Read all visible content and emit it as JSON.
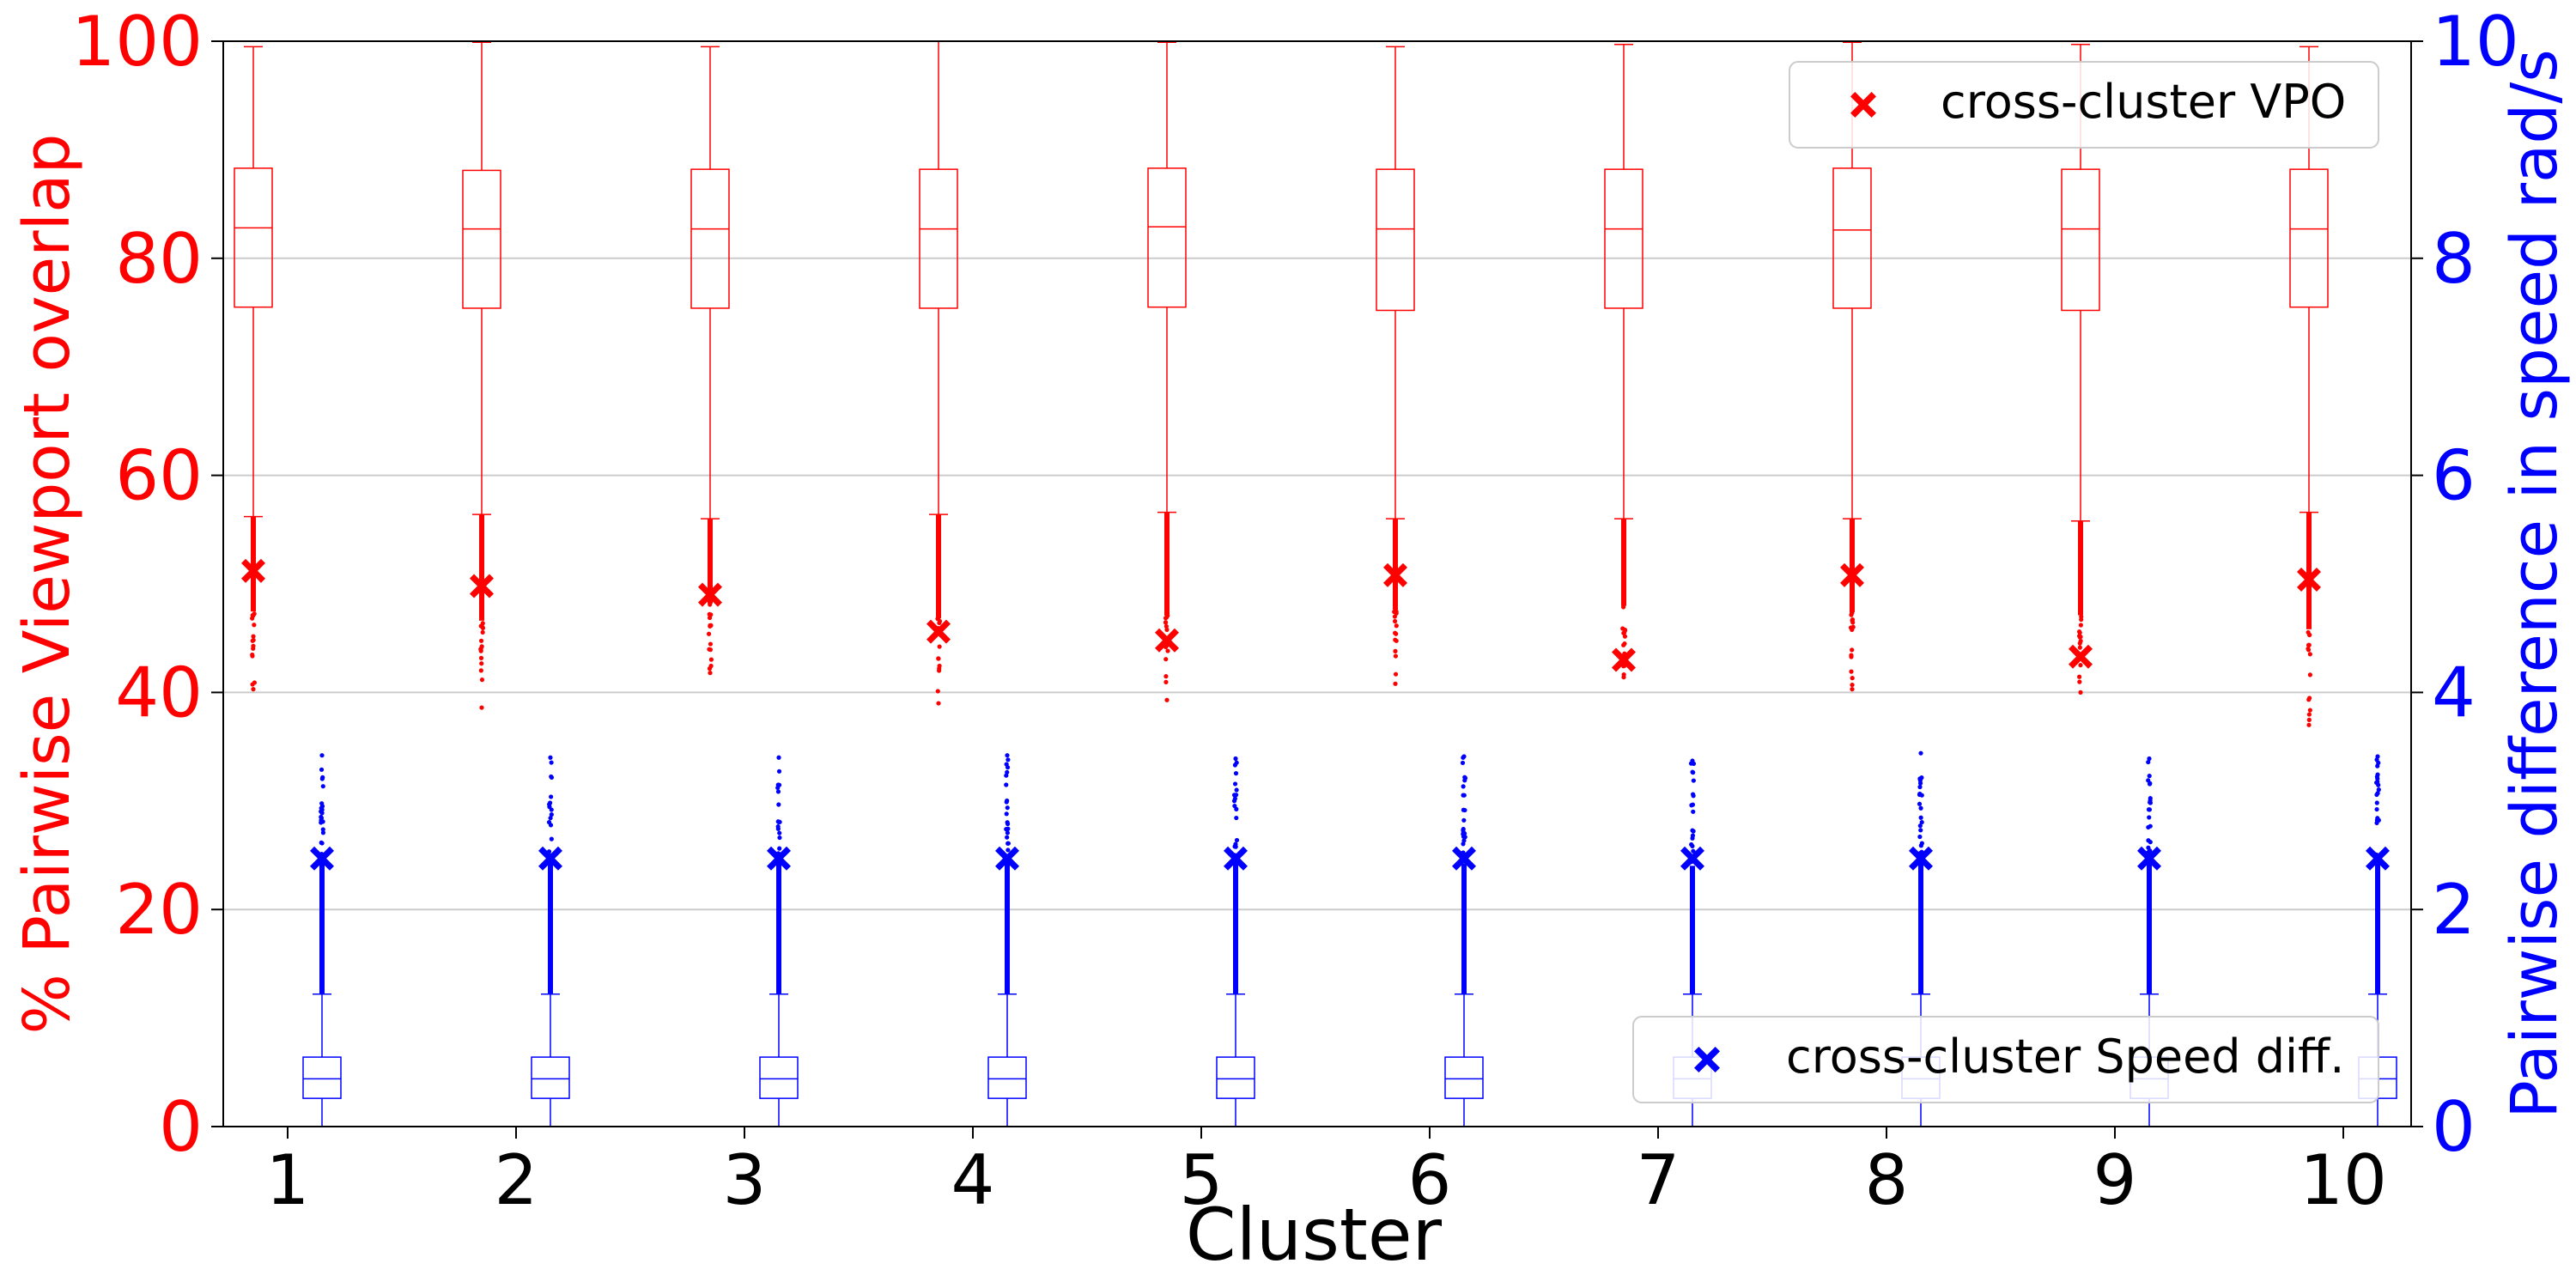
{
  "chart_data": {
    "type": "box",
    "xlabel": "Cluster",
    "ylabel_left": "% Pairwise Viewport overlap",
    "ylabel_right": "Pairwise difference in speed rad/s",
    "categories": [
      "1",
      "2",
      "3",
      "4",
      "5",
      "6",
      "7",
      "8",
      "9",
      "10"
    ],
    "ylim_left": [
      0,
      100
    ],
    "ylim_right": [
      0,
      10
    ],
    "yticks_left": [
      "0",
      "20",
      "40",
      "60",
      "80",
      "100"
    ],
    "yticks_right": [
      "0",
      "2",
      "4",
      "6",
      "8",
      "10"
    ],
    "grid": "horizontal",
    "colors": {
      "vpo": "#ff0000",
      "speed": "#0000ff"
    },
    "series": [
      {
        "name": "cross-cluster VPO",
        "axis": "left",
        "legend_location": "upper right",
        "boxes": [
          {
            "q1": 75.5,
            "median": 82.8,
            "q3": 88.3,
            "whisker_low": 56.2,
            "whisker_high": 99.5,
            "flier_min": 40.3
          },
          {
            "q1": 75.4,
            "median": 82.7,
            "q3": 88.1,
            "whisker_low": 56.4,
            "whisker_high": 99.9,
            "flier_min": 38.6
          },
          {
            "q1": 75.4,
            "median": 82.7,
            "q3": 88.2,
            "whisker_low": 56.0,
            "whisker_high": 99.5,
            "flier_min": 41.8
          },
          {
            "q1": 75.4,
            "median": 82.7,
            "q3": 88.2,
            "whisker_low": 56.4,
            "whisker_high": 100.0,
            "flier_min": 39.0
          },
          {
            "q1": 75.5,
            "median": 82.9,
            "q3": 88.3,
            "whisker_low": 56.6,
            "whisker_high": 99.9,
            "flier_min": 39.3
          },
          {
            "q1": 75.2,
            "median": 82.7,
            "q3": 88.2,
            "whisker_low": 56.0,
            "whisker_high": 99.5,
            "flier_min": 40.8
          },
          {
            "q1": 75.4,
            "median": 82.7,
            "q3": 88.2,
            "whisker_low": 56.0,
            "whisker_high": 99.7,
            "flier_min": 41.4
          },
          {
            "q1": 75.4,
            "median": 82.6,
            "q3": 88.3,
            "whisker_low": 56.0,
            "whisker_high": 99.9,
            "flier_min": 40.3
          },
          {
            "q1": 75.2,
            "median": 82.7,
            "q3": 88.2,
            "whisker_low": 55.8,
            "whisker_high": 99.7,
            "flier_min": 40.0
          },
          {
            "q1": 75.5,
            "median": 82.7,
            "q3": 88.2,
            "whisker_low": 56.6,
            "whisker_high": 99.5,
            "flier_min": 37.0
          }
        ],
        "cross_cluster_values": [
          51.2,
          49.8,
          49.0,
          45.6,
          44.8,
          50.8,
          43.0,
          50.8,
          43.3,
          50.4
        ]
      },
      {
        "name": "cross-cluster Speed diff.",
        "axis": "right",
        "legend_location": "lower right",
        "boxes": [
          {
            "q1": 0.26,
            "median": 0.44,
            "q3": 0.64,
            "whisker_low": 0.0,
            "whisker_high": 1.22,
            "flier_max": 3.42
          },
          {
            "q1": 0.26,
            "median": 0.44,
            "q3": 0.64,
            "whisker_low": 0.0,
            "whisker_high": 1.22,
            "flier_max": 3.4
          },
          {
            "q1": 0.26,
            "median": 0.44,
            "q3": 0.64,
            "whisker_low": 0.0,
            "whisker_high": 1.22,
            "flier_max": 3.4
          },
          {
            "q1": 0.26,
            "median": 0.44,
            "q3": 0.64,
            "whisker_low": 0.0,
            "whisker_high": 1.22,
            "flier_max": 3.42
          },
          {
            "q1": 0.26,
            "median": 0.44,
            "q3": 0.64,
            "whisker_low": 0.0,
            "whisker_high": 1.22,
            "flier_max": 3.39
          },
          {
            "q1": 0.26,
            "median": 0.44,
            "q3": 0.64,
            "whisker_low": 0.0,
            "whisker_high": 1.22,
            "flier_max": 3.41
          },
          {
            "q1": 0.26,
            "median": 0.44,
            "q3": 0.64,
            "whisker_low": 0.0,
            "whisker_high": 1.22,
            "flier_max": 3.37
          },
          {
            "q1": 0.26,
            "median": 0.44,
            "q3": 0.64,
            "whisker_low": 0.0,
            "whisker_high": 1.22,
            "flier_max": 3.44
          },
          {
            "q1": 0.26,
            "median": 0.44,
            "q3": 0.64,
            "whisker_low": 0.0,
            "whisker_high": 1.22,
            "flier_max": 3.39
          },
          {
            "q1": 0.26,
            "median": 0.44,
            "q3": 0.64,
            "whisker_low": 0.0,
            "whisker_high": 1.22,
            "flier_max": 3.41
          }
        ],
        "cross_cluster_values": [
          2.47,
          2.47,
          2.47,
          2.47,
          2.47,
          2.47,
          2.47,
          2.47,
          2.47,
          2.47
        ]
      }
    ]
  }
}
